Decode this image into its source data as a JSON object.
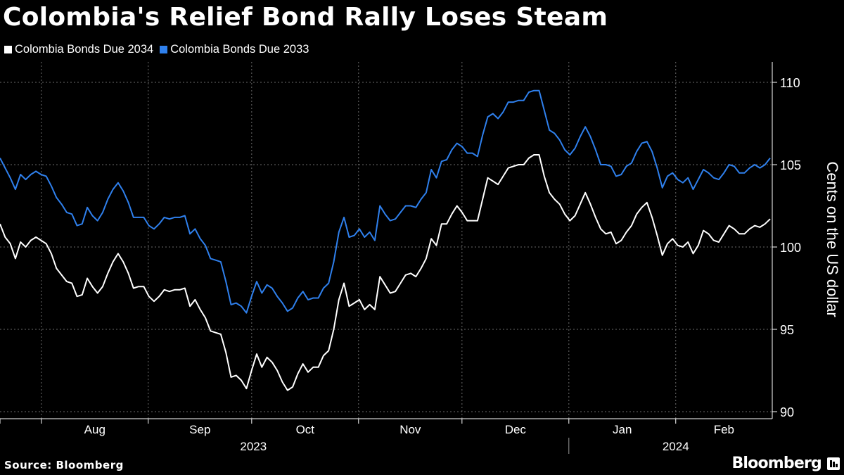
{
  "title": "Colombia's Relief Bond Rally Loses Steam",
  "source": "Source: Bloomberg",
  "brand": "Bloomberg",
  "colors": {
    "background": "#000000",
    "series_2034": "#ffffff",
    "series_2033": "#2f80ed",
    "grid": "#6a6a6a"
  },
  "chart_data": {
    "type": "line",
    "title": "Colombia's Relief Bond Rally Loses Steam",
    "xlabel": "",
    "ylabel": "Cents on the US dollar",
    "ylim": [
      90,
      110
    ],
    "yticks": [
      90,
      95,
      100,
      105,
      110
    ],
    "grid": true,
    "legend_position": "top-left",
    "x_start": "2023-07-20",
    "x_end": "2024-02-29",
    "month_ticks": [
      "Aug",
      "Sep",
      "Oct",
      "Nov",
      "Dec",
      "Jan",
      "Feb"
    ],
    "year_labels": [
      "2023",
      "2024"
    ],
    "series": [
      {
        "name": "Colombia Bonds Due 2034",
        "color": "#ffffff",
        "values": [
          101.4,
          100.6,
          100.2,
          99.3,
          100.3,
          100.0,
          100.4,
          100.6,
          100.4,
          100.2,
          99.6,
          98.7,
          98.3,
          97.9,
          97.8,
          97.0,
          97.1,
          98.1,
          97.6,
          97.2,
          97.6,
          98.4,
          99.1,
          99.6,
          99.1,
          98.4,
          97.5,
          97.6,
          97.6,
          97.0,
          96.7,
          97.0,
          97.4,
          97.3,
          97.4,
          97.4,
          97.5,
          96.4,
          96.8,
          96.2,
          95.7,
          94.9,
          94.8,
          94.7,
          93.6,
          92.1,
          92.2,
          91.9,
          91.4,
          92.5,
          93.5,
          92.7,
          93.3,
          93.0,
          92.5,
          91.8,
          91.3,
          91.5,
          92.3,
          92.9,
          92.4,
          92.7,
          92.7,
          93.4,
          93.7,
          95.0,
          96.8,
          97.8,
          96.4,
          96.6,
          96.8,
          96.2,
          96.5,
          96.2,
          98.2,
          97.7,
          97.2,
          97.3,
          97.8,
          98.3,
          98.4,
          98.2,
          98.7,
          99.3,
          100.5,
          100.1,
          101.4,
          101.4,
          102.0,
          102.5,
          102.1,
          101.6,
          101.6,
          101.6,
          102.9,
          104.2,
          104.0,
          103.8,
          104.3,
          104.8,
          104.9,
          105.0,
          105.0,
          105.4,
          105.6,
          105.6,
          104.3,
          103.3,
          102.9,
          102.6,
          102.0,
          101.6,
          101.9,
          102.6,
          103.3,
          102.6,
          101.8,
          101.1,
          100.8,
          100.9,
          100.2,
          100.4,
          100.9,
          101.3,
          102.0,
          102.4,
          102.7,
          101.8,
          100.7,
          99.5,
          100.2,
          100.5,
          100.1,
          100.0,
          100.3,
          99.6,
          100.1,
          101.0,
          100.8,
          100.4,
          100.3,
          100.8,
          101.3,
          101.1,
          100.8,
          100.8,
          101.1,
          101.3,
          101.2,
          101.4,
          101.7
        ]
      },
      {
        "name": "Colombia Bonds Due 2033",
        "color": "#2f80ed",
        "values": [
          105.4,
          104.8,
          104.2,
          103.5,
          104.4,
          104.1,
          104.4,
          104.6,
          104.4,
          104.3,
          103.7,
          103.0,
          102.6,
          102.1,
          102.0,
          101.3,
          101.4,
          102.4,
          101.9,
          101.6,
          102.1,
          102.9,
          103.5,
          103.9,
          103.4,
          102.7,
          101.8,
          101.8,
          101.8,
          101.3,
          101.1,
          101.4,
          101.8,
          101.7,
          101.8,
          101.8,
          101.9,
          100.8,
          101.1,
          100.5,
          100.1,
          99.3,
          99.2,
          99.1,
          97.9,
          96.5,
          96.6,
          96.4,
          96.0,
          97.0,
          97.9,
          97.2,
          97.7,
          97.5,
          97.0,
          96.6,
          96.1,
          96.3,
          96.9,
          97.3,
          96.8,
          96.9,
          96.9,
          97.5,
          97.8,
          99.1,
          100.9,
          101.8,
          100.6,
          100.7,
          101.1,
          100.6,
          100.9,
          100.4,
          102.5,
          102.0,
          101.6,
          101.7,
          102.1,
          102.5,
          102.5,
          102.4,
          102.9,
          103.3,
          104.7,
          104.2,
          105.2,
          105.3,
          105.9,
          106.3,
          106.1,
          105.7,
          105.7,
          105.5,
          106.8,
          107.9,
          108.1,
          107.8,
          108.2,
          108.8,
          108.8,
          108.9,
          108.9,
          109.4,
          109.5,
          109.5,
          108.3,
          107.1,
          106.9,
          106.5,
          105.9,
          105.6,
          106.0,
          106.7,
          107.3,
          106.7,
          105.9,
          105.0,
          105.0,
          104.9,
          104.3,
          104.4,
          104.9,
          105.1,
          105.8,
          106.3,
          106.4,
          105.8,
          104.8,
          103.6,
          104.3,
          104.5,
          104.1,
          103.9,
          104.2,
          103.5,
          104.1,
          104.7,
          104.5,
          104.2,
          104.1,
          104.5,
          105.0,
          104.9,
          104.5,
          104.5,
          104.8,
          105.0,
          104.8,
          105.0,
          105.4
        ]
      }
    ]
  }
}
